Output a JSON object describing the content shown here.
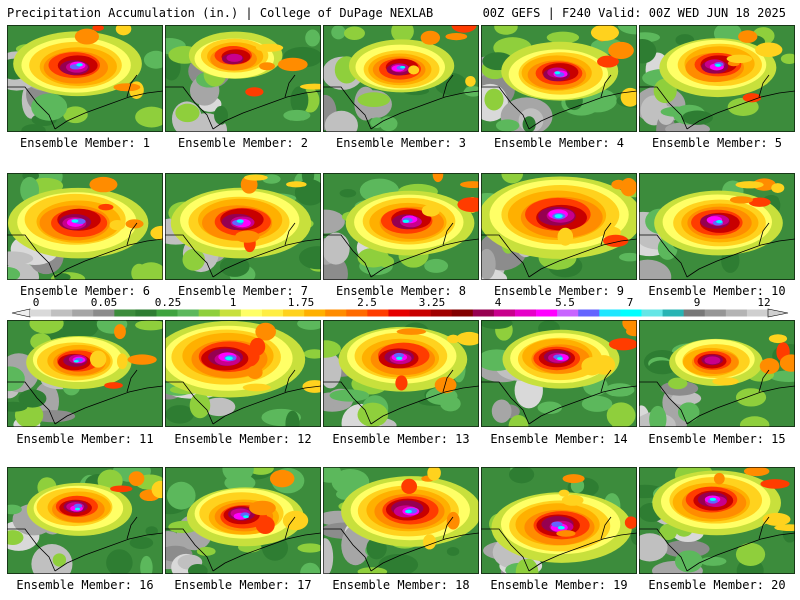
{
  "header": {
    "title_left": "Precipitation Accumulation (in.) | College of DuPage NEXLAB",
    "title_right": "00Z GEFS | F240 Valid: 00Z WED JUN 18 2025"
  },
  "colorbar": {
    "tick_labels": [
      "0",
      "0.05",
      "0.25",
      "1",
      "1.75",
      "2.5",
      "3.25",
      "4",
      "5.5",
      "7",
      "9",
      "12"
    ],
    "colors": [
      "#d9d9d9",
      "#c0c0c0",
      "#a6a6a6",
      "#8c8c8c",
      "#3c8c3c",
      "#2e7d32",
      "#3fa33f",
      "#5cb85c",
      "#8fcf3c",
      "#c8e03c",
      "#ffff66",
      "#ffee44",
      "#ffd21e",
      "#ffb000",
      "#ff8c00",
      "#ff6a00",
      "#ff3c00",
      "#e60000",
      "#c80000",
      "#a00000",
      "#820000",
      "#960050",
      "#c8008c",
      "#e600c8",
      "#ff00ff",
      "#c864ff",
      "#6464ff",
      "#1ee6ff",
      "#00ffff",
      "#64e6e6",
      "#28b4b4",
      "#787878",
      "#969696",
      "#b4b4b4",
      "#cfcfcf"
    ]
  },
  "panels": [
    {
      "label": "Ensemble Member: 1",
      "intensity": 0.55,
      "core": [
        0.45,
        0.38
      ]
    },
    {
      "label": "Ensemble Member: 2",
      "intensity": 0.4,
      "core": [
        0.45,
        0.3
      ]
    },
    {
      "label": "Ensemble Member: 3",
      "intensity": 0.45,
      "core": [
        0.5,
        0.4
      ]
    },
    {
      "label": "Ensemble Member: 4",
      "intensity": 0.5,
      "core": [
        0.5,
        0.45
      ]
    },
    {
      "label": "Ensemble Member: 5",
      "intensity": 0.5,
      "core": [
        0.5,
        0.38
      ]
    },
    {
      "label": "Ensemble Member: 6",
      "intensity": 0.6,
      "core": [
        0.45,
        0.45
      ]
    },
    {
      "label": "Ensemble Member: 7",
      "intensity": 0.6,
      "core": [
        0.48,
        0.45
      ]
    },
    {
      "label": "Ensemble Member: 8",
      "intensity": 0.55,
      "core": [
        0.55,
        0.45
      ]
    },
    {
      "label": "Ensemble Member: 9",
      "intensity": 0.7,
      "core": [
        0.5,
        0.4
      ]
    },
    {
      "label": "Ensemble Member: 10",
      "intensity": 0.55,
      "core": [
        0.5,
        0.45
      ]
    },
    {
      "label": "Ensemble Member: 11",
      "intensity": 0.45,
      "core": [
        0.45,
        0.38
      ]
    },
    {
      "label": "Ensemble Member: 12",
      "intensity": 0.65,
      "core": [
        0.4,
        0.35
      ]
    },
    {
      "label": "Ensemble Member: 13",
      "intensity": 0.55,
      "core": [
        0.5,
        0.35
      ]
    },
    {
      "label": "Ensemble Member: 14",
      "intensity": 0.5,
      "core": [
        0.5,
        0.35
      ]
    },
    {
      "label": "Ensemble Member: 15",
      "intensity": 0.4,
      "core": [
        0.48,
        0.38
      ]
    },
    {
      "label": "Ensemble Member: 16",
      "intensity": 0.45,
      "core": [
        0.45,
        0.38
      ]
    },
    {
      "label": "Ensemble Member: 17",
      "intensity": 0.5,
      "core": [
        0.5,
        0.45
      ]
    },
    {
      "label": "Ensemble Member: 18",
      "intensity": 0.6,
      "core": [
        0.55,
        0.4
      ]
    },
    {
      "label": "Ensemble Member: 19",
      "intensity": 0.6,
      "core": [
        0.5,
        0.55
      ]
    },
    {
      "label": "Ensemble Member: 20",
      "intensity": 0.55,
      "core": [
        0.48,
        0.32
      ]
    }
  ]
}
